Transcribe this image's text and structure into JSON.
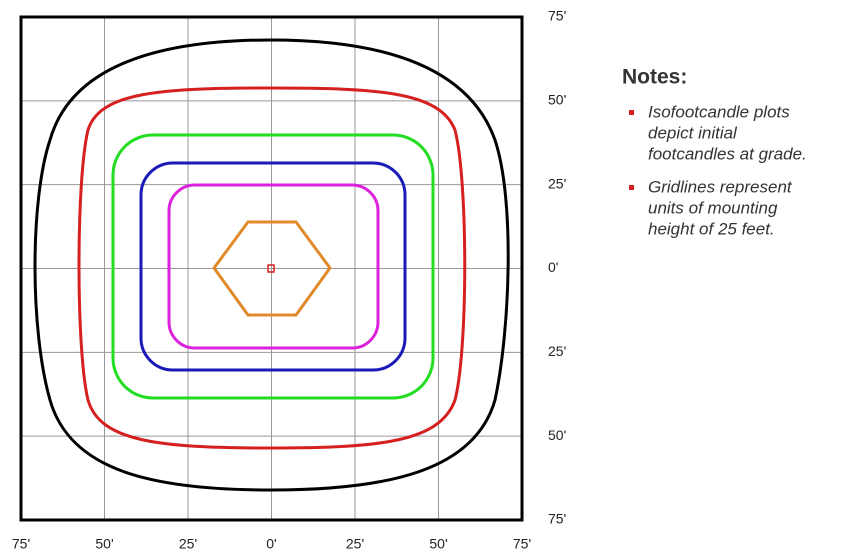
{
  "axis": {
    "x_labels": [
      "75'",
      "50'",
      "25'",
      "0'",
      "25'",
      "50'",
      "75'"
    ],
    "y_labels": [
      "75'",
      "50'",
      "25'",
      "0'",
      "25'",
      "50'",
      "75'"
    ]
  },
  "notes": {
    "title": "Notes:",
    "items": [
      [
        "Isofootcandle plots",
        "depict initial",
        "footcandles at grade."
      ],
      [
        "Gridlines represent",
        "units of mounting",
        "height of 25 feet."
      ]
    ]
  }
}
